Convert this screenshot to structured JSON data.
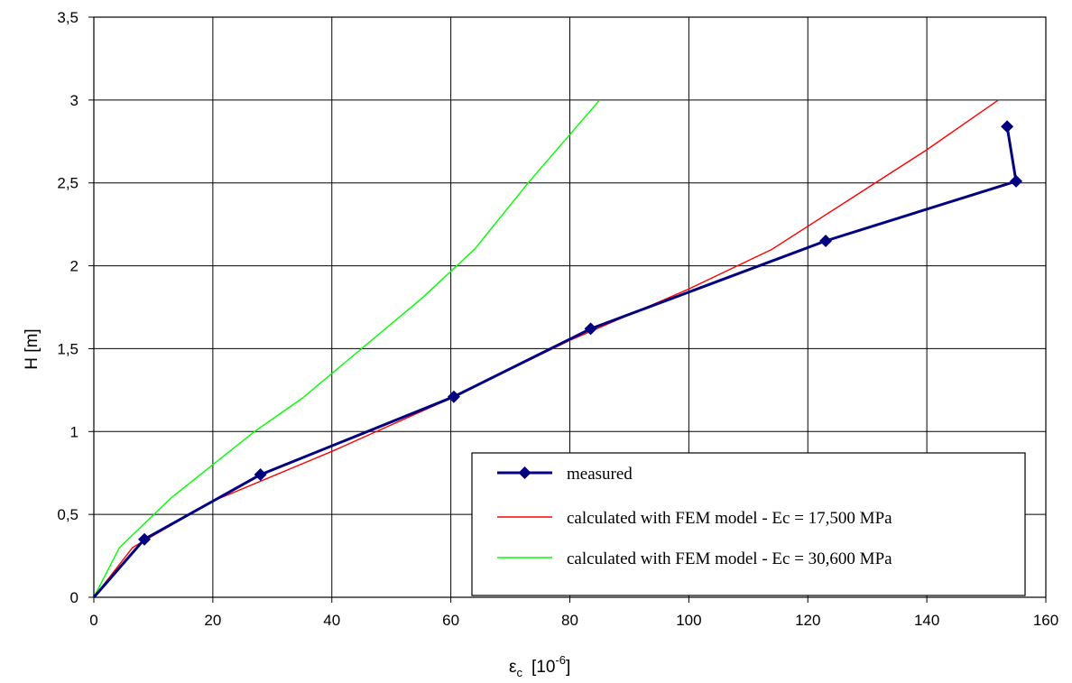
{
  "chart_data": {
    "type": "line",
    "xlabel": "ε",
    "xlabel_sub": "c",
    "xlabel_unit": "[10",
    "xlabel_exp": "-6",
    "xlabel_close": "]",
    "ylabel": "H  [m]",
    "xlim": [
      0,
      160
    ],
    "ylim": [
      0,
      3.5
    ],
    "x_ticks": [
      0,
      20,
      40,
      60,
      80,
      100,
      120,
      140,
      160
    ],
    "x_tick_labels": [
      "0",
      "20",
      "40",
      "60",
      "80",
      "100",
      "120",
      "140",
      "160"
    ],
    "y_ticks": [
      0,
      0.5,
      1,
      1.5,
      2,
      2.5,
      3,
      3.5
    ],
    "y_tick_labels": [
      "0",
      "0,5",
      "1",
      "1,5",
      "2",
      "2,5",
      "3",
      "3,5"
    ],
    "grid": true,
    "legend_position": "bottom-right",
    "series": [
      {
        "name": "measured",
        "color": "#000080",
        "marker": "diamond",
        "points": [
          [
            0,
            0
          ],
          [
            8.5,
            0.35
          ],
          [
            28,
            0.74
          ],
          [
            60.5,
            1.21
          ],
          [
            83.5,
            1.62
          ],
          [
            123,
            2.15
          ],
          [
            155,
            2.51
          ],
          [
            153.5,
            2.84
          ]
        ]
      },
      {
        "name": "calculated with FEM model - Ec = 17,500 MPa",
        "color": "#ff0000",
        "marker": "none",
        "points": [
          [
            0,
            0
          ],
          [
            6.5,
            0.3
          ],
          [
            20,
            0.58
          ],
          [
            40,
            0.88
          ],
          [
            60,
            1.2
          ],
          [
            80,
            1.55
          ],
          [
            100,
            1.86
          ],
          [
            114,
            2.1
          ],
          [
            127,
            2.4
          ],
          [
            140,
            2.7
          ],
          [
            152,
            3.0
          ]
        ]
      },
      {
        "name": "calculated with FEM model - Ec = 30,600 MPa",
        "color": "#00ff00",
        "marker": "none",
        "points": [
          [
            0,
            0
          ],
          [
            4.3,
            0.3
          ],
          [
            13,
            0.6
          ],
          [
            27,
            1.0
          ],
          [
            35,
            1.2
          ],
          [
            45,
            1.5
          ],
          [
            55,
            1.8
          ],
          [
            64,
            2.1
          ],
          [
            73,
            2.5
          ],
          [
            85,
            3.0
          ]
        ]
      }
    ]
  }
}
